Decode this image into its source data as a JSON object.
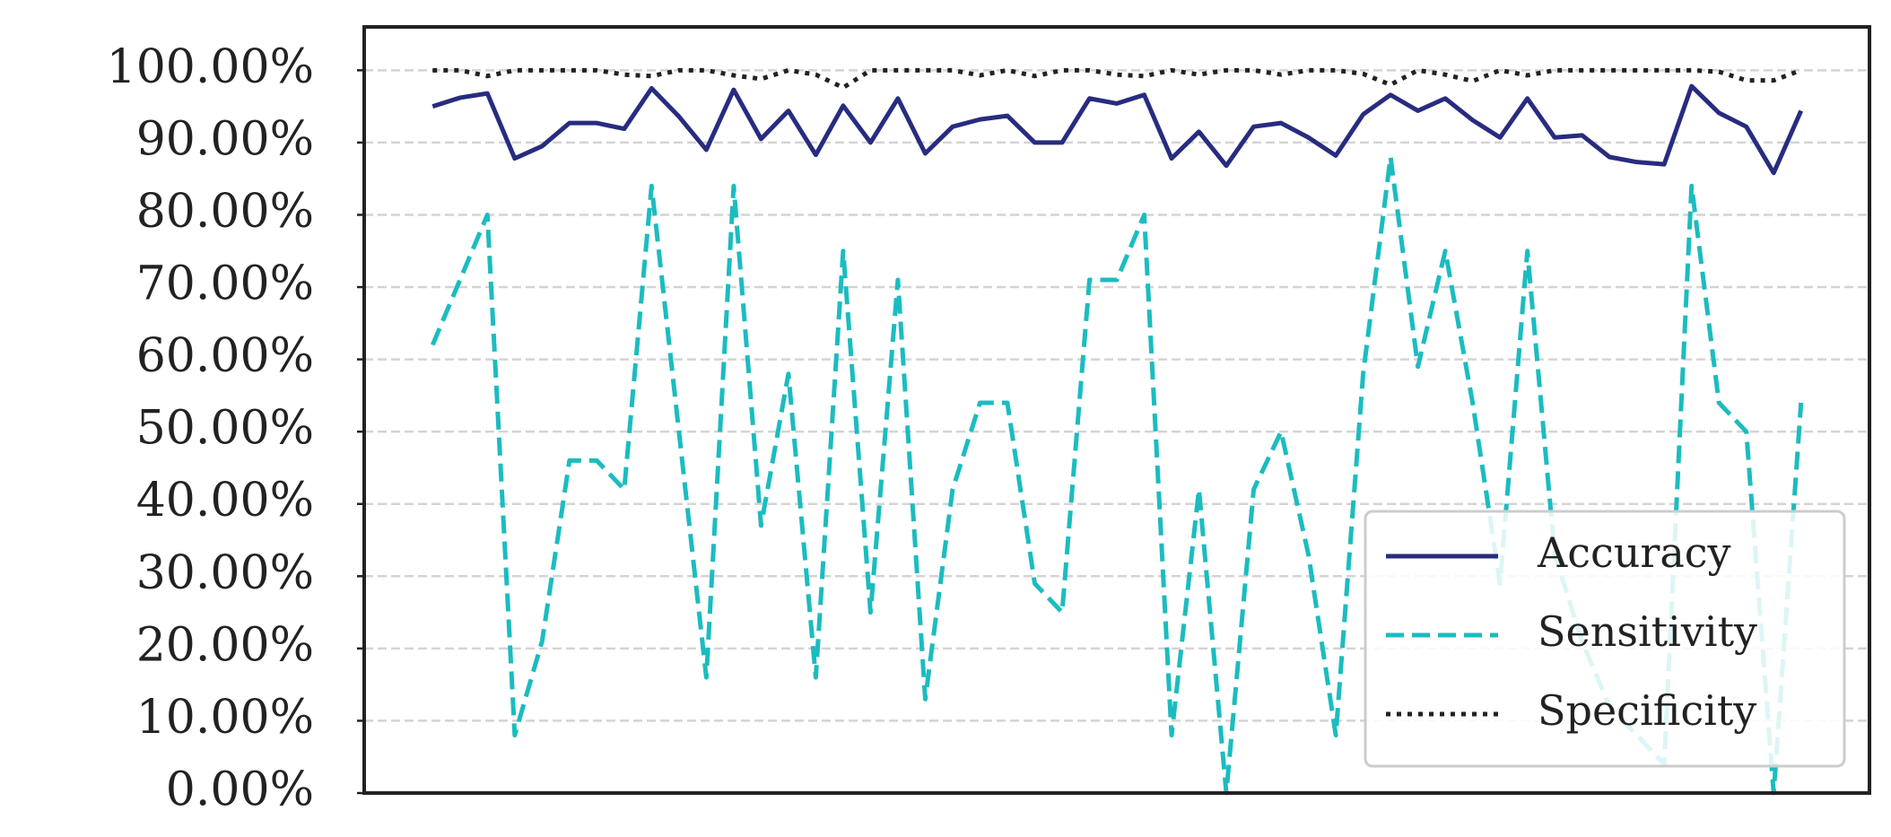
{
  "chart_data": {
    "type": "line",
    "categories": [
      null,
      null,
      null,
      null,
      null,
      null,
      null,
      null,
      null,
      null,
      null,
      null,
      null,
      null,
      null,
      null,
      null,
      null,
      null,
      null,
      null,
      null,
      null,
      null,
      null,
      null,
      null,
      null,
      null,
      null,
      null,
      null,
      null,
      null,
      null,
      null,
      null,
      null,
      null,
      null,
      null,
      null,
      null,
      null,
      null,
      null,
      null,
      null,
      null,
      null,
      null
    ],
    "series": [
      {
        "name": "Accuracy",
        "color": "#272c80",
        "dash": "solid",
        "values": [
          95,
          96.2,
          96.8,
          87.8,
          89.5,
          92.7,
          92.7,
          91.9,
          97.5,
          93.6,
          89,
          97.3,
          90.5,
          94.4,
          88.3,
          95.1,
          90,
          96.1,
          88.5,
          92.2,
          93.2,
          93.7,
          90,
          90,
          96.1,
          95.4,
          96.6,
          87.8,
          91.5,
          86.8,
          92.2,
          92.7,
          90.7,
          88.2,
          93.9,
          96.6,
          94.4,
          96.1,
          93.1,
          90.7,
          96.1,
          90.7,
          91,
          88,
          87.3,
          87,
          97.8,
          94.1,
          92.2,
          85.8,
          94.4
        ]
      },
      {
        "name": "Sensitivity",
        "color": "#1bbcc0",
        "dash": "dashed",
        "values": [
          62,
          71,
          80,
          8,
          21,
          46,
          46,
          42,
          84,
          50,
          16,
          84,
          37,
          58,
          16,
          75,
          25,
          71,
          13,
          42,
          54,
          54,
          29,
          25,
          71,
          71,
          80,
          8,
          42,
          0,
          42,
          50,
          33,
          8,
          58,
          88,
          59,
          75,
          54,
          29,
          75,
          33,
          21,
          12,
          8,
          4,
          84,
          54,
          50,
          0,
          54
        ]
      },
      {
        "name": "Specificity",
        "color": "#222222",
        "dash": "dotted",
        "values": [
          100,
          100,
          99.2,
          100,
          100,
          100,
          100,
          99.4,
          99.2,
          100,
          100,
          99.3,
          98.8,
          100,
          99.4,
          97.6,
          100,
          100,
          100,
          100,
          99.3,
          100,
          99.2,
          100,
          100,
          99.4,
          99.2,
          100,
          99.4,
          100,
          100,
          99.4,
          100,
          100,
          99.5,
          98,
          100,
          99.4,
          98.5,
          100,
          99.3,
          100,
          100,
          100,
          100,
          100,
          100,
          99.8,
          98.6,
          98.6,
          100
        ]
      }
    ],
    "ylim": [
      0,
      106
    ],
    "yticks": [
      {
        "value": 0,
        "label": "0.00%"
      },
      {
        "value": 10,
        "label": "10.00%"
      },
      {
        "value": 20,
        "label": "20.00%"
      },
      {
        "value": 30,
        "label": "30.00%"
      },
      {
        "value": 40,
        "label": "40.00%"
      },
      {
        "value": 50,
        "label": "50.00%"
      },
      {
        "value": 60,
        "label": "60.00%"
      },
      {
        "value": 70,
        "label": "70.00%"
      },
      {
        "value": 80,
        "label": "80.00%"
      },
      {
        "value": 90,
        "label": "90.00%"
      },
      {
        "value": 100,
        "label": "100.00%"
      }
    ],
    "grid": true,
    "legend": "lower right"
  }
}
